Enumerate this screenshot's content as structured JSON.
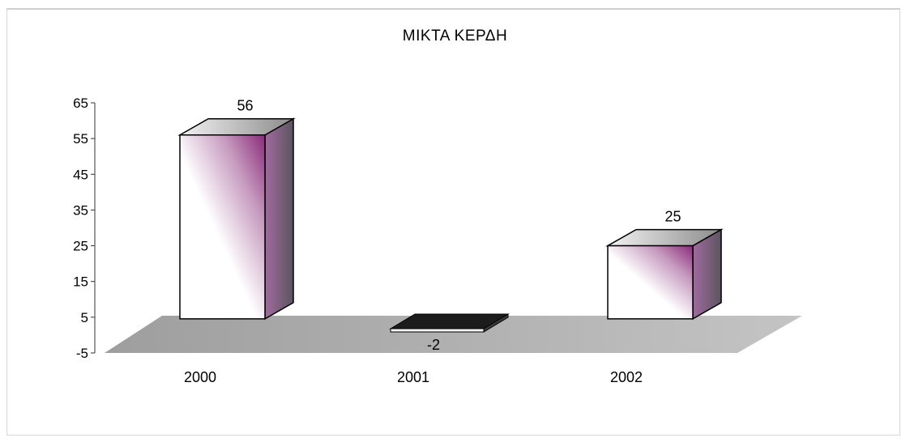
{
  "chart_data": {
    "type": "bar",
    "title": "ΜΙΚΤΑ ΚΕΡΔΗ",
    "categories": [
      "2000",
      "2001",
      "2002"
    ],
    "values": [
      56,
      -2,
      25
    ],
    "data_labels": [
      "56",
      "-2",
      "25"
    ],
    "yticks": [
      -5,
      5,
      15,
      25,
      35,
      45,
      55,
      65
    ],
    "ylim": [
      -5,
      65
    ],
    "xlabel": "",
    "ylabel": "",
    "legend": "none",
    "grid": false,
    "style": "3d-column"
  },
  "colors": {
    "floor": "#a9a9a9",
    "bar_front_light": "#ffffff",
    "bar_front_accent": "#8a2a78",
    "bar_side": "#7a5d86",
    "bar_top": "#cfcfcf",
    "neg_bar": "#1a1a1a"
  }
}
